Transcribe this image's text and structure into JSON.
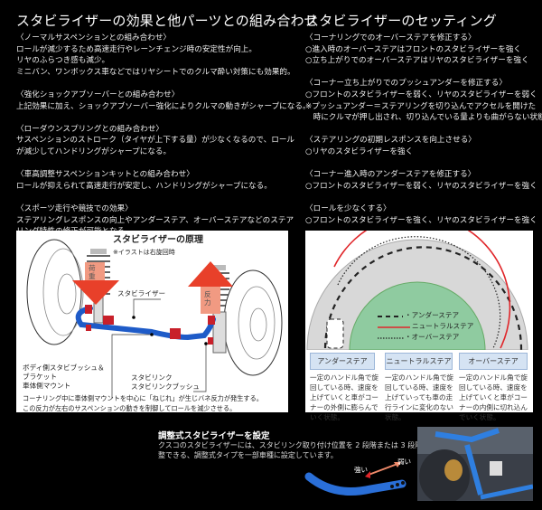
{
  "left": {
    "title": "スタビライザーの効果と他パーツとの組み合わせ",
    "groups": [
      {
        "heading": "〈ノーマルサスペンションとの組み合わせ〉",
        "lines": [
          "ロールが減少するため高速走行やレーンチェンジ時の安定性が向上。",
          "リヤのふらつき感も減少。",
          "ミニバン、ワンボックス車などではリヤシートでのクルマ酔い対策にも効果的。"
        ]
      },
      {
        "heading": "〈強化ショックアブソーバーとの組み合わせ〉",
        "lines": [
          "上記効果に加え、ショックアブソーバー強化によりクルマの動きがシャープになる。"
        ]
      },
      {
        "heading": "〈ローダウンスプリングとの組み合わせ〉",
        "lines": [
          "サスペンションのストローク（タイヤが上下する量）が少なくなるので、ロール",
          "が減少してハンドリングがシャープになる。"
        ]
      },
      {
        "heading": "〈車高調整サスペンションキットとの組み合わせ〉",
        "lines": [
          "ロールが抑えられて高速走行が安定し、ハンドリングがシャープになる。"
        ]
      },
      {
        "heading": "〈スポーツ走行や競技での効果〉",
        "lines": [
          "ステアリングレスポンスの向上やアンダーステア、オーバーステアなどのステア",
          "リング特性の修正が可能となる。"
        ]
      }
    ]
  },
  "right": {
    "title": "スタビライザーのセッティング",
    "groups": [
      {
        "heading": "〈コーナリングでのオーバーステアを修正する〉",
        "lines": [
          "○進入時のオーバーステアはフロントのスタビライザーを強く",
          "○立ち上がりでのオーバーステアはリヤのスタビライザーを強く"
        ]
      },
      {
        "heading": "〈コーナー立ち上がりでのプッシュアンダーを修正する〉",
        "lines": [
          "○フロントのスタビライザーを弱く、リヤのスタビライザーを弱く",
          "※プッシュアンダー＝ステアリングを切り込んでアクセルを開けた",
          "　時にクルマが押し出され、切り込んでいる量よりも曲がらない状態"
        ]
      },
      {
        "heading": "〈ステアリングの初期レスポンスを向上させる〉",
        "lines": [
          "○リヤのスタビライザーを強く"
        ]
      },
      {
        "heading": "〈コーナー進入時のアンダーステアを修正する〉",
        "lines": [
          "○フロントのスタビライザーを弱く、リヤのスタビライザーを強く"
        ]
      },
      {
        "heading": "〈ロールを少なくする〉",
        "lines": [
          "○フロントのスタビライザーを強く、リヤのスタビライザーを強く"
        ]
      }
    ]
  },
  "principle": {
    "title": "スタビライザーの原理",
    "note": "※イラストは右旋回時",
    "load": "荷重",
    "reaction": "反力",
    "stabilizer": "スタビライザー",
    "bush_lines": [
      "ボディ側スタビブッシュ＆",
      "ブラケット",
      "車体側マウント"
    ],
    "link_lines": [
      "スタビリンク",
      "スタビリンクブッシュ"
    ],
    "caption": [
      "コーナリング中に車体側マウントを中心に「ねじれ」が生じバネ反力が発生する。",
      "この反力が左右のサスペンションの動きを制御してロールを減少させる。"
    ],
    "colors": {
      "bar": "#1e5bc8",
      "arrow": "#e8402a",
      "bush": "#c8202a"
    }
  },
  "steer": {
    "legend": [
      "・アンダーステア",
      "ニュートラルステア",
      "・オーバーステア"
    ],
    "types": [
      {
        "label": "アンダーステア",
        "desc": "一定のハンドル角で旋回している時、速度を上げていくと車がコーナーの外側に膨らんでいく状態。"
      },
      {
        "label": "ニュートラルステア",
        "desc": "一定のハンドル角で旋回している時、速度を上げていっても車の走行ラインに変化のない状態。"
      },
      {
        "label": "オーバーステア",
        "desc": "一定のハンドル角で旋回している時、速度を上げていくと車がコーナーの内側に切れ込んでいく状態。"
      }
    ],
    "colors": {
      "road": "#d8d8d8",
      "inner": "#8fcba0",
      "neutral": "#e0262a"
    }
  },
  "adjust": {
    "title": "調整式スタビライザーを設定",
    "lines": [
      "クスコのスタビライザーには、スタビリンク取り付け位置を 2 段階または 3 段階に調",
      "整できる、調整式タイプを一部車種に設定しています。"
    ],
    "strong": "強い",
    "weak": "弱い"
  }
}
